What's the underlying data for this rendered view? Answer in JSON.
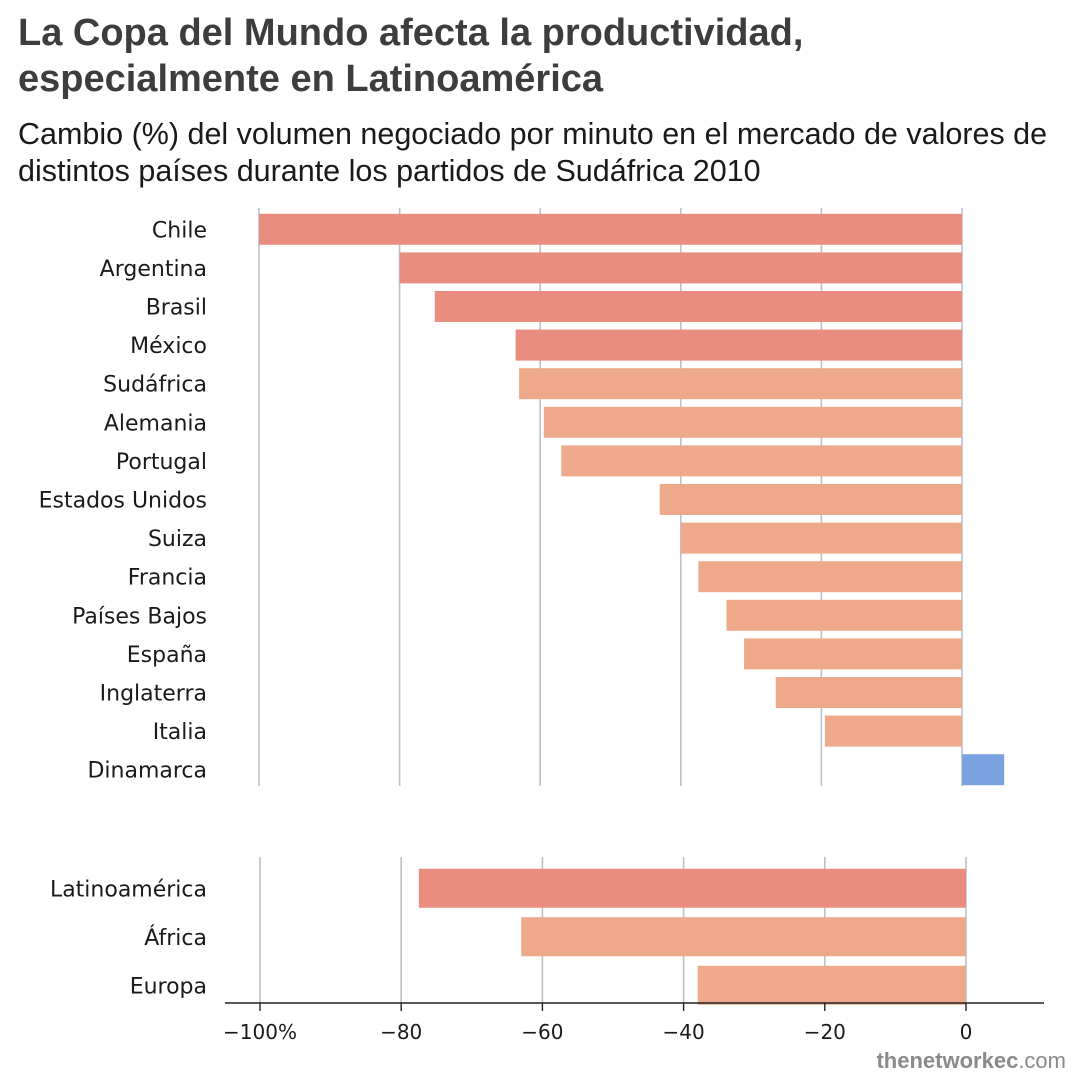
{
  "title": "La Copa del Mundo afecta la productividad, especialmente en Latinoamérica",
  "subtitle": "Cambio (%) del volumen negociado por minuto en el mercado de valores de distintos países durante los partidos de Sudáfrica 2010",
  "credit": {
    "strong": "thenetworkec",
    "rest": ".com"
  },
  "colors": {
    "latam": "#e88d80",
    "other": "#eea98a",
    "positive": "#7aa1e0",
    "grid": "#b9c2cc",
    "axis": "#222222"
  },
  "chart_data": [
    {
      "type": "bar",
      "orientation": "horizontal",
      "categories": [
        "Chile",
        "Argentina",
        "Brasil",
        "México",
        "Sudáfrica",
        "Alemania",
        "Portugal",
        "Estados Unidos",
        "Suiza",
        "Francia",
        "Países Bajos",
        "España",
        "Inglaterra",
        "Italia",
        "Dinamarca"
      ],
      "values": [
        -100,
        -80,
        -75,
        -63.5,
        -63,
        -59.5,
        -57,
        -43,
        -40,
        -37.5,
        -33.5,
        -31,
        -26.5,
        -19.5,
        6
      ],
      "groups": [
        "latam",
        "latam",
        "latam",
        "latam",
        "other",
        "other",
        "other",
        "other",
        "other",
        "other",
        "other",
        "other",
        "other",
        "other",
        "positive"
      ],
      "xlim": [
        -100,
        6
      ],
      "grid": true
    },
    {
      "type": "bar",
      "orientation": "horizontal",
      "categories": [
        "Latinoamérica",
        "África",
        "Europa"
      ],
      "values": [
        -77.5,
        -63,
        -38
      ],
      "groups": [
        "latam",
        "other",
        "other"
      ],
      "xlim": [
        -100,
        6
      ],
      "xticks": [
        -100,
        -80,
        -60,
        -40,
        -20,
        0
      ],
      "xticklabels": [
        "−100%",
        "−80",
        "−60",
        "−40",
        "−20",
        "0"
      ],
      "grid": true
    }
  ]
}
